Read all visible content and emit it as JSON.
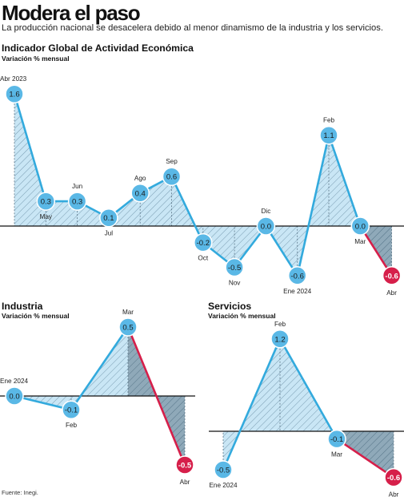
{
  "title": "Modera el paso",
  "subtitle": "La producción nacional se desacelera debido al menor dinamismo de la industria y los servicios.",
  "source": "Fuente: Inegi.",
  "colors": {
    "line": "#33aadd",
    "fill": "#c9e6f5",
    "dot": "#5ab8e6",
    "negative": "#d61f4a",
    "shade": "#7f9fb1",
    "baseline": "#111111"
  },
  "chart_data": [
    {
      "type": "line",
      "title": "Indicador Global de Actividad Económica",
      "subtitle": "Variación % mensual",
      "x": [
        "Abr 2023",
        "May",
        "Jun",
        "Jul",
        "Ago",
        "Sep",
        "Oct",
        "Nov",
        "Dic",
        "Ene 2024",
        "Feb",
        "Mar",
        "Abr"
      ],
      "values": [
        1.6,
        0.3,
        0.3,
        0.1,
        0.4,
        0.6,
        -0.2,
        -0.5,
        0.0,
        -0.6,
        1.1,
        0.0,
        -0.6
      ],
      "value_labels": [
        "1.6",
        "0.3",
        "0.3",
        "0.1",
        "0.4",
        "0.6",
        "-0.2",
        "-0.5",
        "0.0",
        "-0.6",
        "1.1",
        "0.0",
        "-0.6"
      ],
      "ylim": [
        -0.6,
        1.6
      ],
      "highlight_last": true
    },
    {
      "type": "line",
      "title": "Industria",
      "subtitle": "Variación % mensual",
      "x": [
        "Ene 2024",
        "Feb",
        "Mar",
        "Abr"
      ],
      "values": [
        0.0,
        -0.1,
        0.5,
        -0.5
      ],
      "value_labels": [
        "0.0",
        "-0.1",
        "0.5",
        "-0.5"
      ],
      "ylim": [
        -0.5,
        0.5
      ],
      "highlight_last": true
    },
    {
      "type": "line",
      "title": "Servicios",
      "subtitle": "Variación % mensual",
      "x": [
        "Ene 2024",
        "Feb",
        "Mar",
        "Abr"
      ],
      "values": [
        -0.5,
        1.2,
        -0.1,
        -0.6
      ],
      "value_labels": [
        "-0.5",
        "1.2",
        "-0.1",
        "-0.6"
      ],
      "ylim": [
        -0.6,
        1.2
      ],
      "highlight_last": true
    }
  ]
}
